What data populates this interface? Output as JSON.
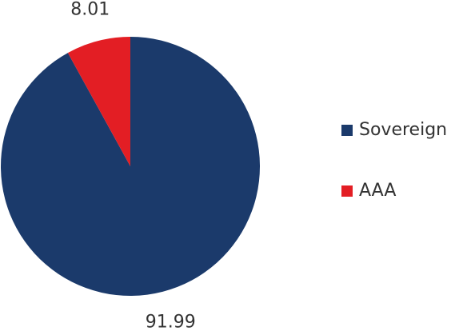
{
  "chart_data": {
    "type": "pie",
    "categories": [
      "Sovereign",
      "AAA"
    ],
    "values": [
      91.99,
      8.01
    ],
    "colors": [
      "#1b3a6b",
      "#e31e24"
    ],
    "legend": "right"
  }
}
